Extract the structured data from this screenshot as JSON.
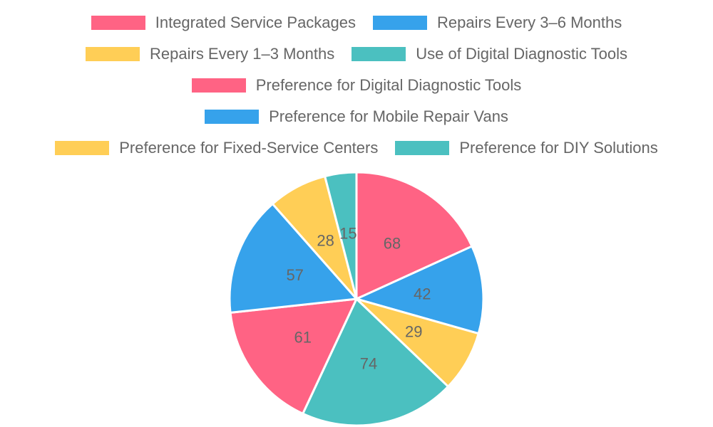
{
  "chart_data": {
    "type": "pie",
    "title": "",
    "legend_position": "top",
    "categories": [
      "Integrated Service Packages",
      "Repairs Every 3–6 Months",
      "Repairs Every 1–3 Months",
      "Use of Digital Diagnostic Tools",
      "Preference for Digital Diagnostic Tools",
      "Preference for Mobile Repair Vans",
      "Preference for Fixed-Service Centers",
      "Preference for DIY Solutions"
    ],
    "values": [
      68,
      42,
      29,
      74,
      61,
      57,
      28,
      15
    ],
    "value_labels": [
      "68",
      "42",
      "29",
      "74",
      "61",
      "57",
      "28",
      "15"
    ],
    "colors": [
      "#ff6384",
      "#36a2eb",
      "#ffce56",
      "#4bc0c0",
      "#ff6384",
      "#36a2eb",
      "#ffce56",
      "#4bc0c0"
    ]
  }
}
